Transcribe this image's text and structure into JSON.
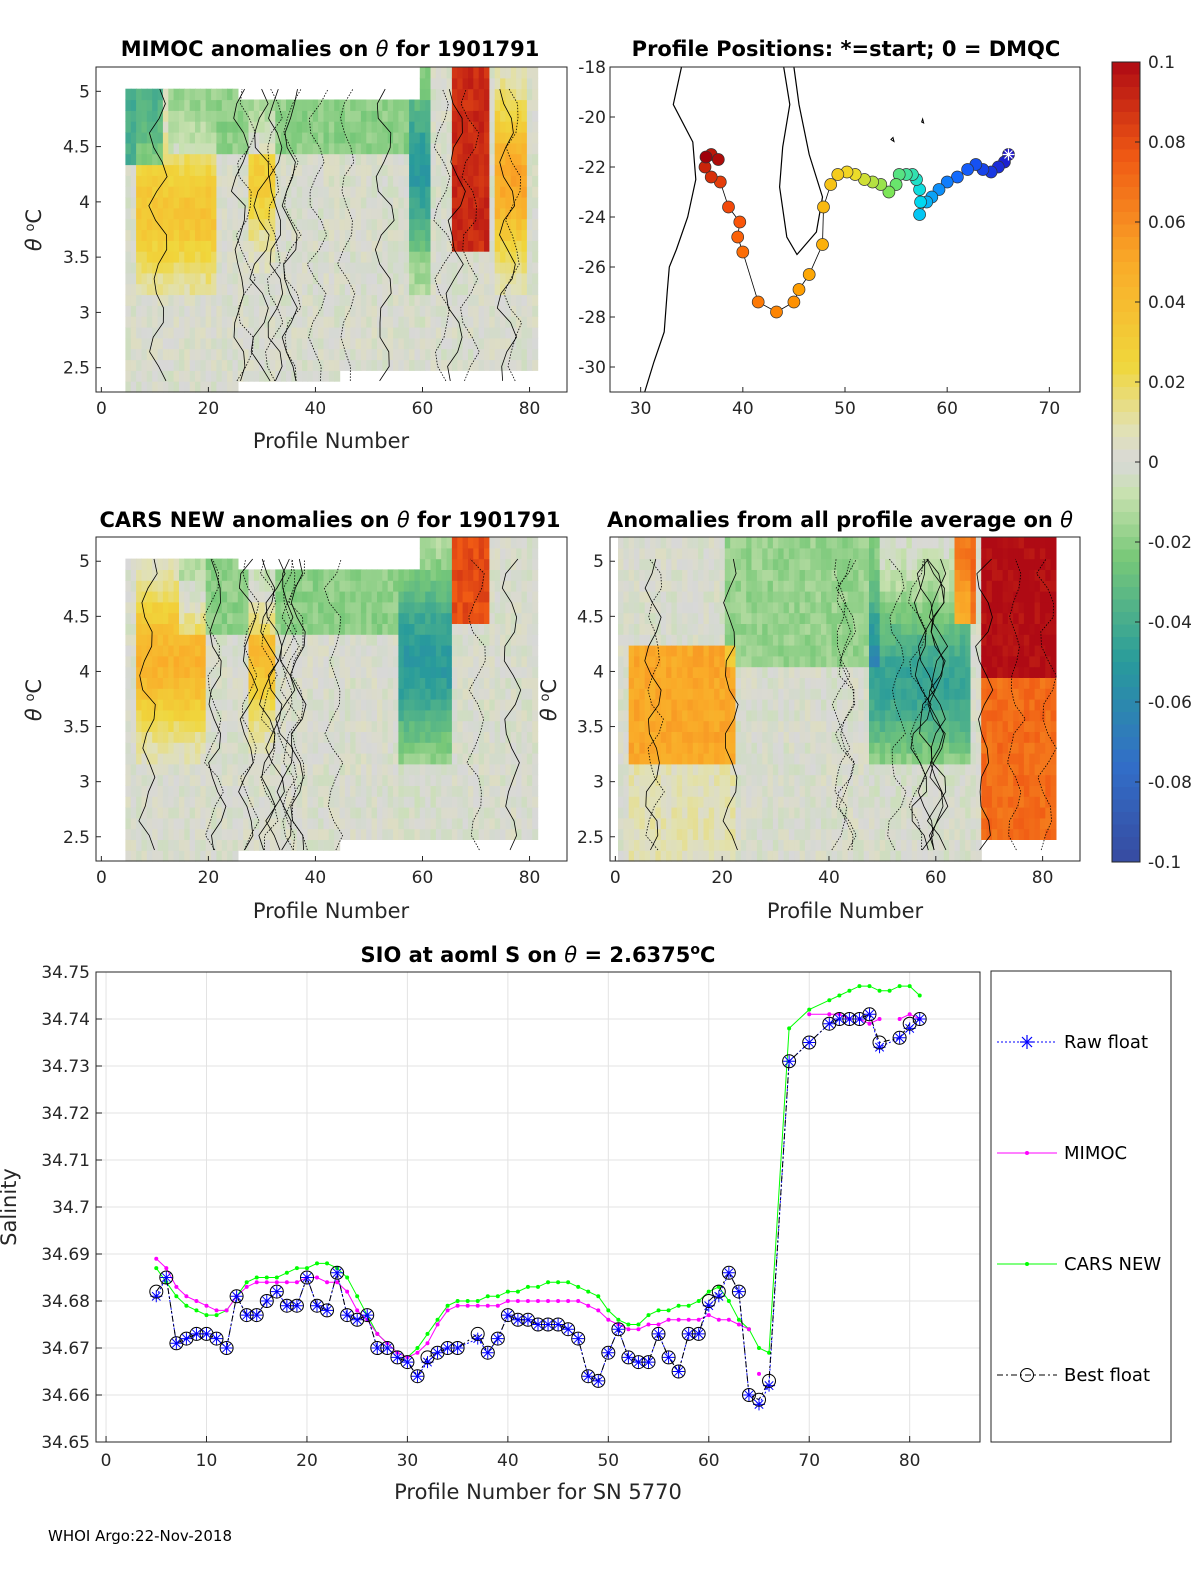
{
  "chart_data": [
    {
      "id": "p1",
      "type": "heatmap",
      "title_pre": "MIMOC anomalies on ",
      "theta": "θ",
      "title_post": "  for 1901791",
      "xlabel": "Profile Number",
      "ylabel_sym": "θ",
      "ylabel_unit": "C",
      "ylabel_sup": "o",
      "xlim": [
        -1,
        87
      ],
      "ylim": [
        2.28,
        5.22
      ],
      "xticks": [
        "0",
        "20",
        "40",
        "60",
        "80"
      ],
      "yticks": [
        "2.5",
        "3",
        "3.5",
        "4",
        "4.5",
        "5"
      ]
    },
    {
      "id": "p2",
      "type": "scatter",
      "title": "Profile Positions: *=start; 0 = DMQC",
      "xlim": [
        27,
        73
      ],
      "ylim": [
        -31,
        -18
      ],
      "xticks": [
        "30",
        "40",
        "50",
        "60",
        "70"
      ],
      "yticks": [
        "-30",
        "-28",
        "-26",
        "-24",
        "-22",
        "-20",
        "-18"
      ],
      "track": [
        [
          66,
          -21.5
        ],
        [
          65.6,
          -21.8
        ],
        [
          65,
          -22
        ],
        [
          64.3,
          -22.2
        ],
        [
          63.5,
          -22.1
        ],
        [
          62.8,
          -21.9
        ],
        [
          62,
          -22.1
        ],
        [
          61,
          -22.4
        ],
        [
          60,
          -22.6
        ],
        [
          59.2,
          -22.9
        ],
        [
          58.5,
          -23.2
        ],
        [
          58,
          -23.4
        ],
        [
          57.3,
          -23.9
        ],
        [
          57.4,
          -23.4
        ],
        [
          57.3,
          -22.9
        ],
        [
          57,
          -22.5
        ],
        [
          56.6,
          -22.3
        ],
        [
          56,
          -22.3
        ],
        [
          55.3,
          -22.3
        ],
        [
          55,
          -22.7
        ],
        [
          54.3,
          -23
        ],
        [
          53.5,
          -22.7
        ],
        [
          52.7,
          -22.6
        ],
        [
          51.9,
          -22.5
        ],
        [
          51,
          -22.3
        ],
        [
          50.2,
          -22.2
        ],
        [
          49.3,
          -22.3
        ],
        [
          48.6,
          -22.7
        ],
        [
          47.9,
          -23.6
        ],
        [
          47.8,
          -25.1
        ],
        [
          46.5,
          -26.3
        ],
        [
          45.5,
          -26.9
        ],
        [
          45,
          -27.4
        ],
        [
          43.3,
          -27.8
        ],
        [
          41.5,
          -27.4
        ],
        [
          40,
          -25.4
        ],
        [
          39.5,
          -24.8
        ],
        [
          39.7,
          -24.2
        ],
        [
          38.6,
          -23.6
        ],
        [
          37.8,
          -22.6
        ],
        [
          36.9,
          -22.4
        ],
        [
          36.3,
          -22
        ],
        [
          36.9,
          -21.5
        ],
        [
          37.6,
          -21.7
        ],
        [
          36.4,
          -21.6
        ]
      ]
    },
    {
      "id": "p3",
      "type": "heatmap",
      "title_pre": "CARS NEW anomalies on ",
      "theta": "θ",
      "title_post": " for 1901791",
      "xlabel": "Profile Number",
      "ylabel_sym": "θ",
      "ylabel_unit": "C",
      "ylabel_sup": "o",
      "xlim": [
        -1,
        87
      ],
      "ylim": [
        2.28,
        5.22
      ],
      "xticks": [
        "0",
        "20",
        "40",
        "60",
        "80"
      ],
      "yticks": [
        "2.5",
        "3",
        "3.5",
        "4",
        "4.5",
        "5"
      ]
    },
    {
      "id": "p4",
      "type": "heatmap",
      "title_pre": "Anomalies from all profile average on ",
      "theta": "θ",
      "xlabel": "Profile Number",
      "ylabel_sym": "θ",
      "ylabel_unit": "C",
      "ylabel_sup": "o",
      "xlim": [
        -1,
        87
      ],
      "ylim": [
        2.28,
        5.22
      ],
      "xticks": [
        "0",
        "20",
        "40",
        "60",
        "80"
      ],
      "yticks": [
        "2.5",
        "3",
        "3.5",
        "4",
        "4.5",
        "5"
      ]
    },
    {
      "id": "cb",
      "type": "colorbar",
      "range": [
        -0.1,
        0.1
      ],
      "ticks": [
        "0.1",
        "0.08",
        "0.06",
        "0.04",
        "0.02",
        "0",
        "-0.02",
        "-0.04",
        "-0.06",
        "-0.08",
        "-0.1"
      ]
    },
    {
      "id": "p5",
      "type": "line",
      "title_pre": "SIO at aoml S on ",
      "theta": "θ",
      "title_mid": " = 2.6375",
      "title_sup": "o",
      "title_unit": "C",
      "xlabel": "Profile Number for SN 5770",
      "ylabel": "Salinity",
      "xlim": [
        -1,
        87
      ],
      "ylim": [
        34.65,
        34.75
      ],
      "xticks": [
        "0",
        "10",
        "20",
        "30",
        "40",
        "50",
        "60",
        "70",
        "80"
      ],
      "yticks": [
        "34.65",
        "34.66",
        "34.67",
        "34.68",
        "34.69",
        "34.7",
        "34.71",
        "34.72",
        "34.73",
        "34.74",
        "34.75"
      ],
      "legend": [
        "Raw float",
        "MIMOC",
        "CARS NEW",
        "Best float"
      ],
      "x_float": [
        5,
        6,
        7,
        8,
        9,
        10,
        11,
        12,
        13,
        14,
        15,
        16,
        17,
        18,
        19,
        20,
        21,
        22,
        23,
        24,
        25,
        26,
        27,
        28,
        29,
        30,
        31,
        32,
        33,
        34,
        35,
        37,
        38,
        39,
        40,
        41,
        42,
        43,
        44,
        45,
        46,
        47,
        48,
        49,
        50,
        51,
        52,
        53,
        54,
        55,
        56,
        57,
        58,
        59,
        60,
        61,
        62,
        63,
        64,
        65,
        66,
        68,
        70,
        72,
        73,
        74,
        75,
        76,
        77,
        79,
        80,
        81
      ],
      "raw_float": [
        34.681,
        34.685,
        34.671,
        34.672,
        34.673,
        34.673,
        34.672,
        34.67,
        34.681,
        34.677,
        34.677,
        34.68,
        34.682,
        34.679,
        34.679,
        34.685,
        34.679,
        34.678,
        34.686,
        34.677,
        34.676,
        34.677,
        34.67,
        34.67,
        34.668,
        34.667,
        34.664,
        34.667,
        34.669,
        34.67,
        34.67,
        34.672,
        34.669,
        34.672,
        34.677,
        34.676,
        34.676,
        34.675,
        34.675,
        34.675,
        34.674,
        34.672,
        34.664,
        34.663,
        34.669,
        34.674,
        34.668,
        34.667,
        34.667,
        34.673,
        34.668,
        34.665,
        34.673,
        34.673,
        34.679,
        34.681,
        34.686,
        34.682,
        34.66,
        34.658,
        34.662,
        34.731,
        34.735,
        34.739,
        34.74,
        34.74,
        34.74,
        34.741,
        34.734,
        34.736,
        34.738,
        34.74
      ],
      "best_float": [
        34.682,
        34.685,
        34.671,
        34.672,
        34.673,
        34.673,
        34.672,
        34.67,
        34.681,
        34.677,
        34.677,
        34.68,
        34.682,
        34.679,
        34.679,
        34.685,
        34.679,
        34.678,
        34.686,
        34.677,
        34.676,
        34.677,
        34.67,
        34.67,
        34.668,
        34.667,
        34.664,
        34.668,
        34.669,
        34.67,
        34.67,
        34.673,
        34.669,
        34.672,
        34.677,
        34.676,
        34.676,
        34.675,
        34.675,
        34.675,
        34.674,
        34.672,
        34.664,
        34.663,
        34.669,
        34.674,
        34.668,
        34.667,
        34.667,
        34.673,
        34.668,
        34.665,
        34.673,
        34.673,
        34.68,
        34.682,
        34.686,
        34.682,
        34.66,
        34.659,
        34.663,
        34.731,
        34.735,
        34.739,
        34.74,
        34.74,
        34.74,
        34.741,
        34.735,
        34.736,
        34.739,
        34.74
      ],
      "x_mimoc": [
        5,
        6,
        7,
        8,
        9,
        10,
        11,
        12,
        13,
        14,
        15,
        16,
        17,
        18,
        19,
        20,
        21,
        22,
        23,
        24,
        25,
        26,
        27,
        28,
        29,
        30,
        31,
        32,
        33,
        34,
        35,
        36,
        37,
        38,
        39,
        40,
        41,
        42,
        43,
        44,
        45,
        46,
        47,
        48,
        49,
        50,
        51,
        52,
        53,
        54,
        55,
        56,
        57,
        58,
        59,
        60,
        61,
        62,
        63,
        64,
        68,
        70,
        72,
        73,
        74,
        75,
        76,
        77,
        78,
        79,
        80,
        81
      ],
      "mimoc": [
        34.689,
        34.687,
        34.683,
        34.681,
        34.68,
        34.679,
        34.678,
        34.678,
        34.681,
        34.683,
        34.684,
        34.684,
        34.684,
        34.684,
        34.684,
        34.685,
        34.685,
        34.684,
        34.684,
        34.682,
        34.678,
        34.676,
        34.673,
        34.671,
        34.669,
        34.668,
        34.669,
        34.671,
        34.675,
        34.678,
        34.679,
        34.679,
        34.679,
        34.679,
        34.679,
        34.68,
        34.68,
        34.68,
        34.68,
        34.68,
        34.68,
        34.68,
        34.68,
        34.679,
        34.678,
        34.676,
        34.675,
        34.674,
        34.674,
        34.675,
        34.675,
        34.676,
        34.676,
        34.676,
        34.676,
        34.677,
        34.676,
        34.676,
        34.675,
        34.674,
        null,
        34.741,
        34.741,
        34.741,
        34.74,
        34.74,
        34.739,
        34.74,
        null,
        34.74,
        34.741,
        34.74
      ],
      "x_cars": [
        5,
        6,
        7,
        8,
        9,
        10,
        11,
        12,
        13,
        14,
        15,
        16,
        17,
        18,
        19,
        20,
        21,
        22,
        23,
        24,
        25,
        26,
        27,
        28,
        29,
        30,
        31,
        32,
        33,
        34,
        35,
        36,
        37,
        38,
        39,
        40,
        41,
        42,
        43,
        44,
        45,
        46,
        47,
        48,
        49,
        50,
        51,
        52,
        53,
        54,
        55,
        56,
        57,
        58,
        59,
        60,
        61,
        62,
        63,
        64,
        65,
        66,
        68,
        70,
        72,
        73,
        74,
        75,
        76,
        77,
        78,
        79,
        80,
        81
      ],
      "cars": [
        34.687,
        34.684,
        34.681,
        34.679,
        34.678,
        34.677,
        34.677,
        34.678,
        34.681,
        34.684,
        34.685,
        34.685,
        34.685,
        34.686,
        34.687,
        34.687,
        34.688,
        34.688,
        34.687,
        34.685,
        34.681,
        34.677,
        34.673,
        34.671,
        34.669,
        34.668,
        34.67,
        34.673,
        34.676,
        34.679,
        34.68,
        34.68,
        34.68,
        34.681,
        34.681,
        34.682,
        34.682,
        34.683,
        34.683,
        34.684,
        34.684,
        34.684,
        34.683,
        34.682,
        34.681,
        34.678,
        34.676,
        34.675,
        34.675,
        34.677,
        34.678,
        34.678,
        34.679,
        34.679,
        34.68,
        34.682,
        34.683,
        34.68,
        34.676,
        34.674,
        34.67,
        34.669,
        34.738,
        34.742,
        34.744,
        34.745,
        34.746,
        34.747,
        34.747,
        34.746,
        34.746,
        34.747,
        34.747,
        34.745
      ]
    }
  ],
  "footer": "WHOI Argo:22-Nov-2018",
  "colors": {
    "raw": "#0000ff",
    "mimoc": "#ff00ff",
    "cars": "#00ff00",
    "best": "#000000",
    "grid": "#e3e3e3",
    "nan": "#ffffff"
  }
}
